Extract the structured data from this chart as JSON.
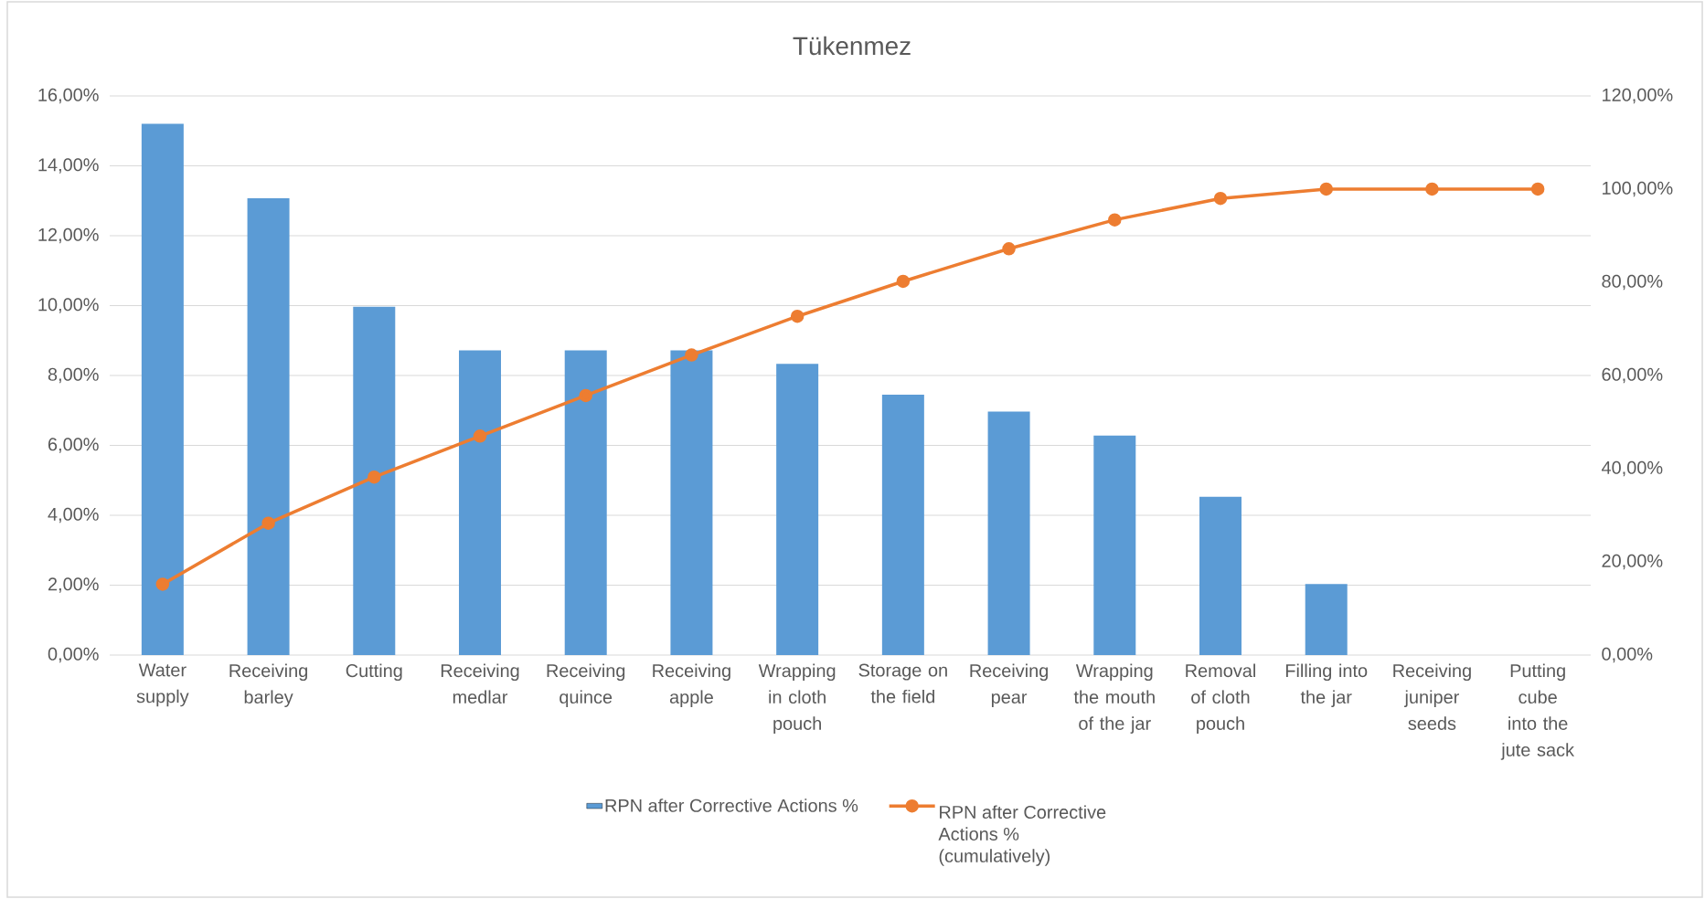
{
  "chart_data": {
    "type": "bar",
    "title": "Tükenmez",
    "categories": [
      "Water supply",
      "Receiving barley",
      "Cutting",
      "Receiving medlar",
      "Receiving quince",
      "Receiving apple",
      "Wrapping in cloth pouch",
      "Storage on the field",
      "Receiving pear",
      "Wrapping the mouth of the jar",
      "Removal of cloth pouch",
      "Filling into the jar",
      "Receiving juniper seeds",
      "Putting cube into the jute sack"
    ],
    "series": [
      {
        "name": "RPN after Corrective Actions %",
        "color": "#5b9bd5",
        "values": [
          15.2,
          13.07,
          9.97,
          8.72,
          8.72,
          8.72,
          8.33,
          7.45,
          6.97,
          6.28,
          4.53,
          2.03,
          0,
          0
        ]
      },
      {
        "name": "RPN after Corrective Actions % (cumulatively)",
        "type": "line",
        "axis": "y2",
        "color": "#ed7d31",
        "marker": "circle",
        "line_style": "solid",
        "values": [
          15.2,
          28.3,
          38.2,
          47.0,
          55.7,
          64.4,
          72.7,
          80.2,
          87.2,
          93.4,
          98.0,
          100,
          100,
          100
        ]
      }
    ],
    "ylim": [
      0,
      16
    ],
    "yticks": [
      {
        "value": 0,
        "label": "0,00%"
      },
      {
        "value": 2,
        "label": "2,00%"
      },
      {
        "value": 4,
        "label": "4,00%"
      },
      {
        "value": 6,
        "label": "6,00%"
      },
      {
        "value": 8,
        "label": "8,00%"
      },
      {
        "value": 10,
        "label": "10,00%"
      },
      {
        "value": 12,
        "label": "12,00%"
      },
      {
        "value": 14,
        "label": "14,00%"
      },
      {
        "value": 16,
        "label": "16,00%"
      }
    ],
    "y2lim": [
      0,
      120
    ],
    "y2ticks": [
      {
        "value": 0,
        "label": "0,00%"
      },
      {
        "value": 20,
        "label": "20,00%"
      },
      {
        "value": 40,
        "label": "40,00%"
      },
      {
        "value": 60,
        "label": "60,00%"
      },
      {
        "value": 80,
        "label": "80,00%"
      },
      {
        "value": 100,
        "label": "100,00%"
      },
      {
        "value": 120,
        "label": "120,00%"
      }
    ],
    "grid": "y",
    "legend": "bottom"
  }
}
